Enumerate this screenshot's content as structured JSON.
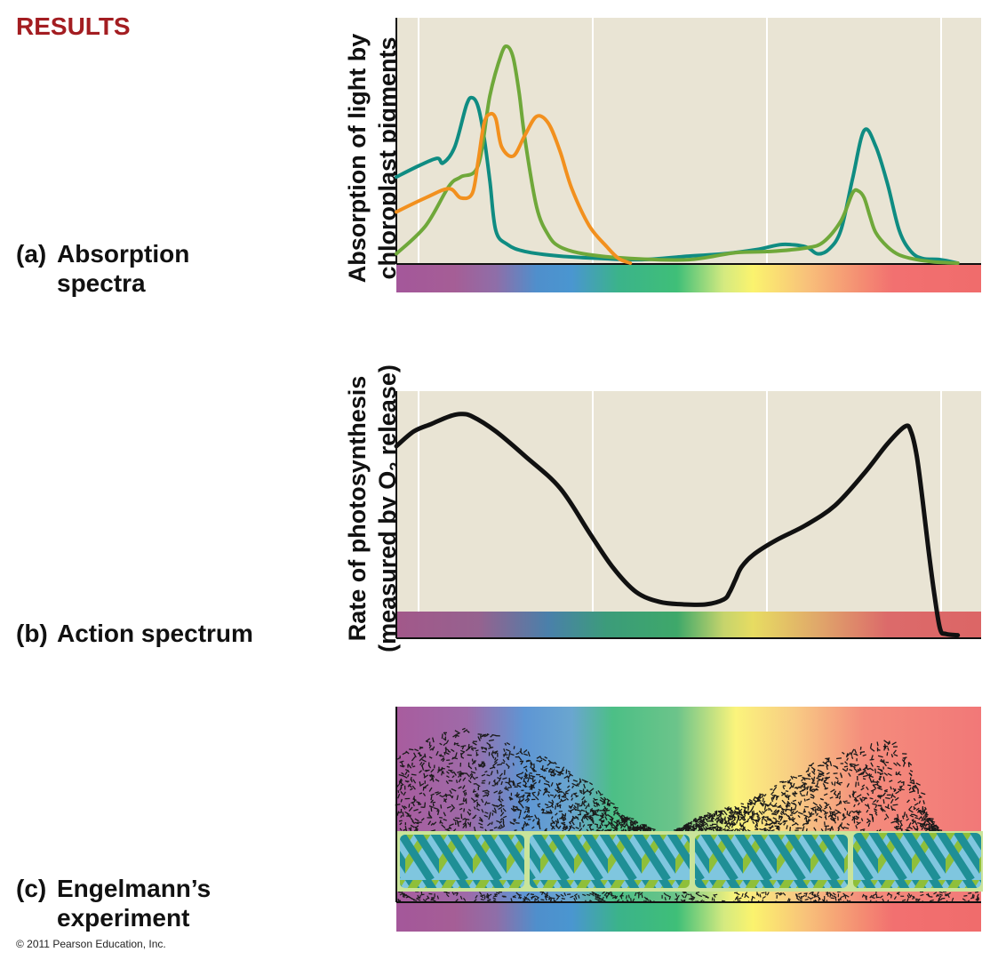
{
  "title": "RESULTS",
  "panels": {
    "a": {
      "tag": "(a)",
      "line1": "Absorption",
      "line2": "spectra"
    },
    "b": {
      "tag": "(b)",
      "line1": "Action  spectrum"
    },
    "c": {
      "tag": "(c)",
      "line1": "Engelmann’s",
      "line2": "experiment"
    }
  },
  "axes": {
    "a_ylabel_line1": "Absorption of light by",
    "a_ylabel_line2": "chloroplast pigments",
    "b_ylabel_line1": "Rate of photosynthesis",
    "b_ylabel_line2a": "(measured by O",
    "b_ylabel_sub": "2",
    "b_ylabel_line2b": " release)"
  },
  "copyright": "© 2011 Pearson Education, Inc.",
  "colors": {
    "teal": "#0f8c82",
    "green": "#6fa83a",
    "orange": "#f2901e",
    "black": "#111111",
    "plot_bg": "#e9e4d4"
  },
  "chart_data": [
    {
      "type": "line",
      "id": "absorption",
      "title": "",
      "xlabel": "",
      "ylabel": "Absorption of light by chloroplast pigments",
      "xlim": [
        0,
        100
      ],
      "ylim": [
        0,
        100
      ],
      "series": [
        {
          "name": "teal",
          "color": "#0f8c82",
          "x": [
            0,
            4,
            7,
            8,
            10,
            12,
            13,
            14,
            15,
            16,
            17,
            19,
            22,
            28,
            35,
            42,
            50,
            56,
            62,
            66,
            70,
            72,
            74,
            76,
            78,
            80,
            82,
            84,
            86,
            88,
            90,
            93,
            96
          ],
          "y": [
            37,
            42,
            45,
            43,
            50,
            68,
            71,
            67,
            54,
            35,
            14,
            8,
            5,
            3,
            2,
            1.5,
            3,
            4,
            6,
            8,
            7,
            4,
            6,
            14,
            36,
            57,
            50,
            34,
            14,
            5,
            2,
            1.5,
            0
          ]
        },
        {
          "name": "green",
          "color": "#6fa83a",
          "x": [
            0,
            5,
            9,
            11,
            14,
            16,
            18,
            19,
            20,
            21,
            22,
            24,
            26,
            28,
            32,
            40,
            50,
            58,
            64,
            70,
            73,
            76,
            78,
            79,
            80,
            81,
            82,
            84,
            86,
            89,
            92,
            96
          ],
          "y": [
            4,
            16,
            33,
            37,
            42,
            72,
            90,
            93,
            88,
            73,
            53,
            24,
            12,
            7,
            4,
            2,
            1.5,
            4.5,
            5,
            6.5,
            9,
            18,
            30,
            31,
            28,
            20,
            13,
            7,
            3.5,
            1.5,
            0.5,
            0
          ]
        },
        {
          "name": "orange",
          "color": "#f2901e",
          "x": [
            0,
            5,
            9,
            11,
            13,
            14,
            15,
            16,
            17,
            18,
            20,
            22,
            24,
            26,
            28,
            30,
            33,
            36,
            38,
            40
          ],
          "y": [
            22,
            28,
            32,
            28,
            30,
            44,
            60,
            64,
            62,
            50,
            46,
            55,
            63,
            60,
            48,
            32,
            16,
            7,
            2,
            0
          ]
        }
      ]
    },
    {
      "type": "line",
      "id": "action",
      "title": "",
      "xlabel": "",
      "ylabel": "Rate of photosynthesis (measured by O2 release)",
      "xlim": [
        0,
        100
      ],
      "ylim": [
        0,
        100
      ],
      "series": [
        {
          "name": "action spectrum",
          "color": "#111111",
          "x": [
            0,
            3,
            6,
            9,
            11,
            13,
            17,
            22,
            28,
            33,
            37,
            41,
            45,
            49,
            53,
            56,
            57,
            58,
            59,
            61,
            65,
            70,
            75,
            80,
            84,
            87,
            88,
            89,
            90,
            91,
            92,
            93,
            94,
            96
          ],
          "y": [
            77,
            83,
            86,
            89,
            90,
            89,
            83,
            73,
            60,
            42,
            28,
            18,
            14,
            13,
            13,
            15,
            18,
            23,
            28,
            33,
            39,
            45,
            53,
            66,
            78,
            85,
            83,
            73,
            55,
            35,
            17,
            3,
            1,
            0.5
          ]
        }
      ]
    }
  ]
}
